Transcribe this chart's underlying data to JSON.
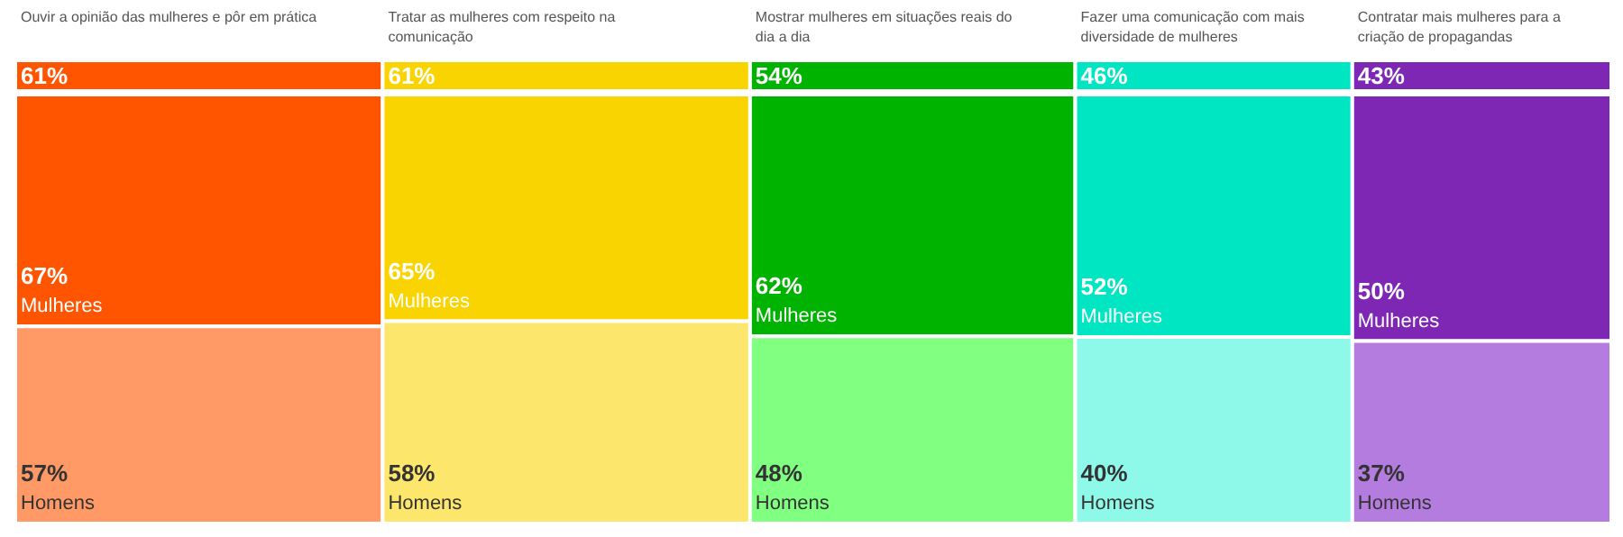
{
  "chart_data": {
    "type": "other",
    "categories": [
      "Ouvir a opinião das mulheres e pôr em prática",
      "Tratar as mulheres com respeito na comunicação",
      "Mostrar mulheres em situações reais do dia a dia",
      "Fazer uma comunicação com mais diversidade de mulheres",
      "Contratar mais mulheres para a criação de propagandas"
    ],
    "values": [
      61,
      61,
      54,
      46,
      43
    ],
    "value_labels": [
      "61%",
      "61%",
      "54%",
      "46%",
      "43%"
    ],
    "colors": [
      "#ff5400",
      "#fad400",
      "#00b300",
      "#00e6c3",
      "#7f27b5"
    ],
    "series": [
      {
        "name": "Mulheres",
        "values": [
          67,
          65,
          62,
          52,
          50
        ],
        "value_labels": [
          "67%",
          "65%",
          "62%",
          "52%",
          "50%"
        ],
        "colors": [
          "#ff5400",
          "#fad400",
          "#00b300",
          "#00e6c3",
          "#7f27b5"
        ]
      },
      {
        "name": "Homens",
        "values": [
          57,
          58,
          48,
          40,
          37
        ],
        "value_labels": [
          "57%",
          "58%",
          "48%",
          "40%",
          "37%"
        ],
        "colors": [
          "#ff9966",
          "#fce66c",
          "#80ff80",
          "#8ef9e8",
          "#b57ce0"
        ]
      }
    ]
  }
}
